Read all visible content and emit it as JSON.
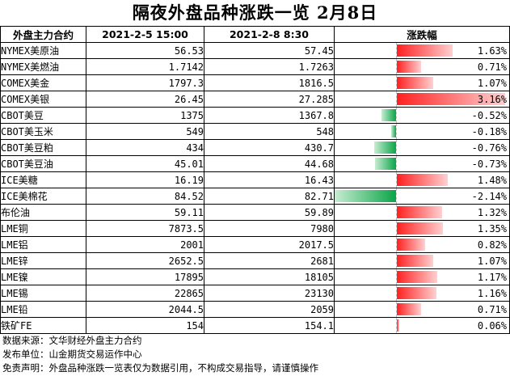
{
  "title": "隔夜外盘品种涨跌一览 2月8日",
  "headers": {
    "name": "外盘主力合约",
    "col1": "2021-2-5 15:00",
    "col2": "2021-2-8 8:30",
    "change": "涨跌幅"
  },
  "rows": [
    {
      "name": "NYMEX美原油",
      "prev": "56.53",
      "curr": "57.45",
      "pct": "1.63%",
      "value": 1.63
    },
    {
      "name": "NYMEX美燃油",
      "prev": "1.7142",
      "curr": "1.7263",
      "pct": "0.71%",
      "value": 0.71
    },
    {
      "name": "COMEX美金",
      "prev": "1797.3",
      "curr": "1816.5",
      "pct": "1.07%",
      "value": 1.07
    },
    {
      "name": "COMEX美银",
      "prev": "26.45",
      "curr": "27.285",
      "pct": "3.16%",
      "value": 3.16
    },
    {
      "name": "CBOT美豆",
      "prev": "1375",
      "curr": "1367.8",
      "pct": "-0.52%",
      "value": -0.52
    },
    {
      "name": "CBOT美玉米",
      "prev": "549",
      "curr": "548",
      "pct": "-0.18%",
      "value": -0.18
    },
    {
      "name": "CBOT美豆粕",
      "prev": "434",
      "curr": "430.7",
      "pct": "-0.76%",
      "value": -0.76
    },
    {
      "name": "CBOT美豆油",
      "prev": "45.01",
      "curr": "44.68",
      "pct": "-0.73%",
      "value": -0.73
    },
    {
      "name": "ICE美糖",
      "prev": "16.19",
      "curr": "16.43",
      "pct": "1.48%",
      "value": 1.48
    },
    {
      "name": "ICE美棉花",
      "prev": "84.52",
      "curr": "82.71",
      "pct": "-2.14%",
      "value": -2.14
    },
    {
      "name": "布伦油",
      "prev": "59.11",
      "curr": "59.89",
      "pct": "1.32%",
      "value": 1.32
    },
    {
      "name": "LME铜",
      "prev": "7873.5",
      "curr": "7980",
      "pct": "1.35%",
      "value": 1.35
    },
    {
      "name": "LME铝",
      "prev": "2001",
      "curr": "2017.5",
      "pct": "0.82%",
      "value": 0.82
    },
    {
      "name": "LME锌",
      "prev": "2652.5",
      "curr": "2681",
      "pct": "1.07%",
      "value": 1.07
    },
    {
      "name": "LME镍",
      "prev": "17895",
      "curr": "18105",
      "pct": "1.17%",
      "value": 1.17
    },
    {
      "name": "LME锡",
      "prev": "22865",
      "curr": "23130",
      "pct": "1.16%",
      "value": 1.16
    },
    {
      "name": "LME铅",
      "prev": "2044.5",
      "curr": "2059",
      "pct": "0.71%",
      "value": 0.71
    },
    {
      "name": "铁矿FE",
      "prev": "154",
      "curr": "154.1",
      "pct": "0.06%",
      "value": 0.06
    }
  ],
  "footer": {
    "source": "数据来源：文华财经外盘主力合约",
    "publisher": "发布单位：山金期货交易运作中心",
    "disclaimer": "免责声明：外盘品种涨跌一览表仅为数据引用，不构成交易指导，请谨慎操作"
  },
  "colors": {
    "positive": "#ff2020",
    "negative": "#0aa548"
  }
}
